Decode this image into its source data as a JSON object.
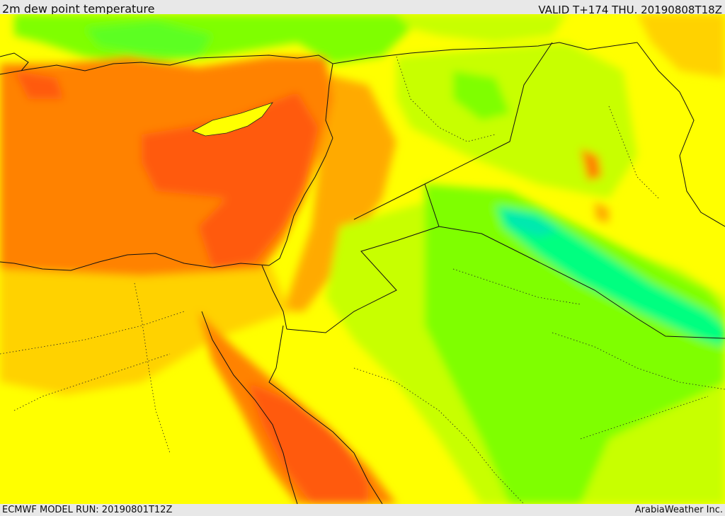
{
  "header": {
    "title": "2m dew point temperature",
    "valid_time": "VALID T+174 THU. 20190808T18Z"
  },
  "footer": {
    "model_run": "ECMWF MODEL RUN: 20190801T12Z",
    "credit": "ArabiaWeather Inc."
  },
  "map": {
    "region": "Eastern Mediterranean and Middle East",
    "field": "2m dew point temperature",
    "palette": {
      "very_high": "#ff5a0a",
      "high": "#ff8200",
      "warm": "#ffaa00",
      "moderate": "#ffd200",
      "mild": "#ffff00",
      "low": "#c8ff00",
      "lower": "#7fff00",
      "very_low": "#00ff80",
      "lowest": "#00e8b0"
    }
  }
}
